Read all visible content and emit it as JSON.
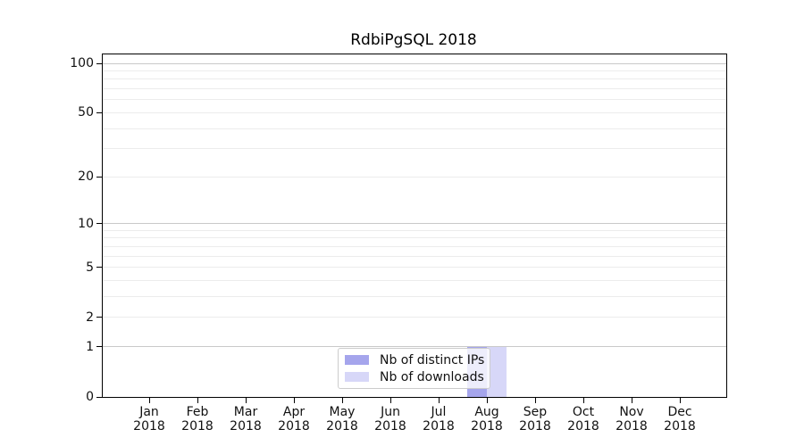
{
  "title": "RdbiPgSQL 2018",
  "legend": {
    "items": [
      {
        "label": "Nb of distinct IPs",
        "color": "#a5a5ec"
      },
      {
        "label": "Nb of downloads",
        "color": "#d7d7f8"
      }
    ]
  },
  "axes": {
    "months": [
      "Jan",
      "Feb",
      "Mar",
      "Apr",
      "May",
      "Jun",
      "Jul",
      "Aug",
      "Sep",
      "Oct",
      "Nov",
      "Dec"
    ],
    "year": "2018",
    "ytick_values": [
      0,
      1,
      2,
      5,
      10,
      20,
      50,
      100
    ]
  },
  "chart_data": {
    "type": "bar",
    "title": "RdbiPgSQL 2018",
    "categories": [
      "Jan 2018",
      "Feb 2018",
      "Mar 2018",
      "Apr 2018",
      "May 2018",
      "Jun 2018",
      "Jul 2018",
      "Aug 2018",
      "Sep 2018",
      "Oct 2018",
      "Nov 2018",
      "Dec 2018"
    ],
    "series": [
      {
        "name": "Nb of distinct IPs",
        "color": "#a5a5ec",
        "values": [
          0,
          0,
          0,
          0,
          0,
          0,
          0,
          1,
          0,
          0,
          0,
          0
        ]
      },
      {
        "name": "Nb of downloads",
        "color": "#d7d7f8",
        "values": [
          0,
          0,
          0,
          0,
          0,
          0,
          0,
          1,
          0,
          0,
          0,
          0
        ]
      }
    ],
    "xlabel": "",
    "ylabel": "",
    "yscale": "log1p",
    "ylim": [
      0,
      113
    ],
    "ytick_values": [
      0,
      1,
      2,
      5,
      10,
      20,
      50,
      100
    ],
    "major_gridlines": [
      1,
      10,
      100
    ],
    "minor_gridlines": [
      2,
      3,
      4,
      5,
      6,
      7,
      8,
      9,
      20,
      30,
      40,
      50,
      60,
      70,
      80,
      90
    ],
    "grid": "horizontal",
    "legend_position": "lower center"
  }
}
